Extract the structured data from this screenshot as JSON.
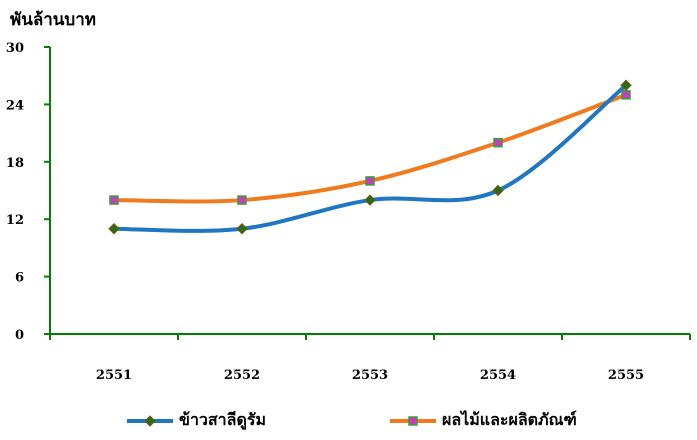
{
  "chart_data": {
    "type": "line",
    "ylabel": "พันล้านบาท",
    "categories": [
      "2551",
      "2552",
      "2553",
      "2554",
      "2555"
    ],
    "ylim": [
      0,
      30
    ],
    "yticks": [
      0,
      6,
      12,
      18,
      24,
      30
    ],
    "grid": false,
    "legend_position": "bottom",
    "series": [
      {
        "name": "ข้าวสาลีดูรัม",
        "values": [
          11,
          11,
          14,
          15,
          26
        ],
        "color": "#1f77c4",
        "marker_color": "#2e6b17",
        "marker": "diamond"
      },
      {
        "name": "ผลไม้และผลิตภัณฑ์",
        "values": [
          14,
          14,
          16,
          20,
          25
        ],
        "color": "#f07a1c",
        "marker_color": "#c040c0",
        "marker": "square"
      }
    ],
    "axis_color": "#008000"
  }
}
